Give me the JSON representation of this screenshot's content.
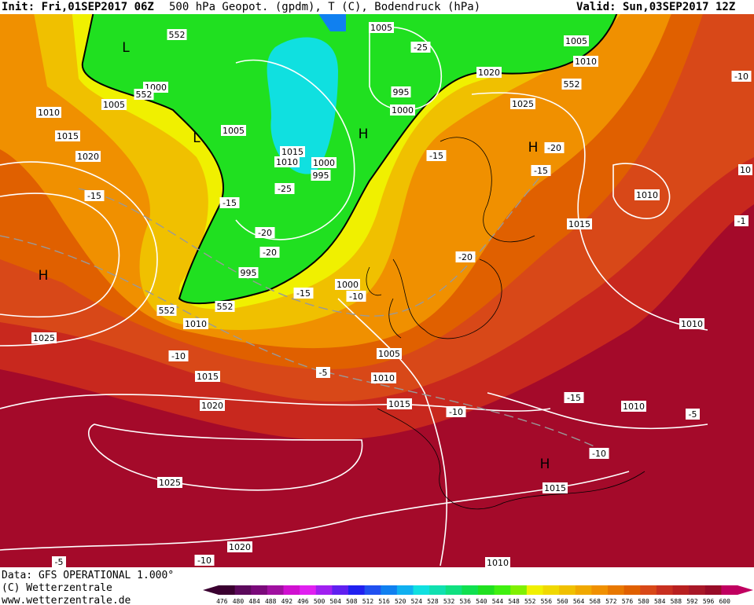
{
  "header": {
    "init": "Init: Fri,01SEP2017 06Z",
    "title": "500 hPa Geopot. (gpdm), T (C), Bodendruck (hPa)",
    "valid": "Valid: Sun,03SEP2017 12Z"
  },
  "footer": {
    "source": "Data: GFS OPERATIONAL 1.000°",
    "copyright": "(C) Wetterzentrale",
    "url": "www.wetterzentrale.de"
  },
  "legend": {
    "labels": [
      "476",
      "480",
      "484",
      "488",
      "492",
      "496",
      "500",
      "504",
      "508",
      "512",
      "516",
      "520",
      "524",
      "528",
      "532",
      "536",
      "540",
      "544",
      "548",
      "552",
      "556",
      "560",
      "564",
      "568",
      "572",
      "576",
      "580",
      "584",
      "588",
      "592",
      "596",
      "600"
    ],
    "colors": [
      "#3a0030",
      "#5c0a5c",
      "#7a0a7a",
      "#a010a0",
      "#d010d0",
      "#e020f0",
      "#a020f0",
      "#6020f0",
      "#2020f0",
      "#2050f0",
      "#1080f0",
      "#10b0f0",
      "#10e0e0",
      "#10e0b0",
      "#10e080",
      "#10e050",
      "#20e020",
      "#40f010",
      "#80f000",
      "#f0f000",
      "#f0d800",
      "#f0c000",
      "#f0a800",
      "#f09000",
      "#e87800",
      "#e06000",
      "#d84818",
      "#c83020",
      "#b82020",
      "#a81828",
      "#980c28",
      "#c00060"
    ]
  },
  "map_labels": [
    "552",
    "L",
    "1005",
    "-25",
    "1005",
    "1010",
    "1020",
    "552",
    "1000",
    "552",
    "1005",
    "995",
    "1025",
    "1010",
    "1000",
    "1005",
    "L",
    "H",
    "1015",
    "H",
    "-20",
    "1015",
    "1010",
    "1000",
    "-15",
    "1020",
    "995",
    "-15",
    "-25",
    "1010",
    "-15",
    "-15",
    "1015",
    "-20",
    "-20",
    "-20",
    "H",
    "995",
    "1000",
    "-15",
    "-10",
    "552",
    "552",
    "1010",
    "1010",
    "1025",
    "-10",
    "1005",
    "-5",
    "1015",
    "1010",
    "-15",
    "1015",
    "-10",
    "1010",
    "-5",
    "1020",
    "-10",
    "H",
    "1025",
    "1015",
    "1020",
    "-10",
    "1010",
    "-10",
    "10",
    "-1",
    "-5"
  ]
}
